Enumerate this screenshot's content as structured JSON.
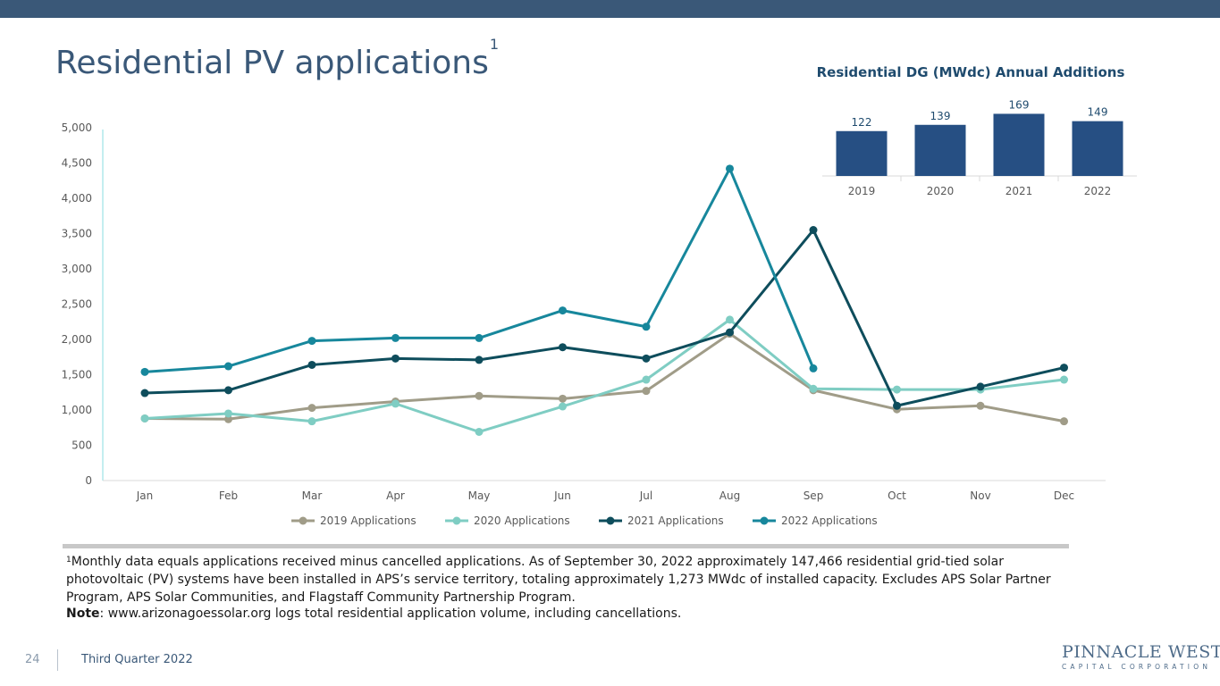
{
  "header": {
    "title": "Residential PV applications",
    "title_sup": "1"
  },
  "colors": {
    "topbar": "#3a5878",
    "title": "#3a5878",
    "series_2019": "#a09c88",
    "series_2020": "#7fcdc3",
    "series_2021": "#0e4d5c",
    "series_2022": "#17879c",
    "bars": "#264f83"
  },
  "chart_data": [
    {
      "type": "line",
      "title": "",
      "xlabel": "",
      "ylabel": "",
      "categories": [
        "Jan",
        "Feb",
        "Mar",
        "Apr",
        "May",
        "Jun",
        "Jul",
        "Aug",
        "Sep",
        "Oct",
        "Nov",
        "Dec"
      ],
      "ylim": [
        0,
        5000
      ],
      "yticks": [
        "0",
        "500",
        "1,000",
        "1,500",
        "2,000",
        "2,500",
        "3,000",
        "3,500",
        "4,000",
        "4,500",
        "5,000"
      ],
      "grid": false,
      "legend_position": "bottom",
      "series": [
        {
          "name": "2019 Applications",
          "values": [
            880,
            870,
            1030,
            1120,
            1200,
            1160,
            1270,
            2080,
            1280,
            1010,
            1060,
            840
          ]
        },
        {
          "name": "2020 Applications",
          "values": [
            880,
            950,
            840,
            1090,
            690,
            1050,
            1430,
            2280,
            1300,
            1290,
            1290,
            1430
          ]
        },
        {
          "name": "2021 Applications",
          "values": [
            1240,
            1280,
            1640,
            1730,
            1710,
            1890,
            1730,
            2100,
            3550,
            1060,
            1330,
            1600
          ]
        },
        {
          "name": "2022 Applications",
          "values": [
            1540,
            1620,
            1980,
            2020,
            2020,
            2410,
            2180,
            4420,
            1590,
            null,
            null,
            null
          ]
        }
      ]
    },
    {
      "type": "bar",
      "title": "Residential DG (MWdc) Annual Additions",
      "xlabel": "",
      "ylabel": "",
      "categories": [
        "2019",
        "2020",
        "2021",
        "2022"
      ],
      "values": [
        122,
        139,
        169,
        149
      ],
      "value_labels": [
        "122",
        "139",
        "169",
        "149"
      ],
      "ylim": [
        0,
        170
      ],
      "grid": false
    }
  ],
  "footnote": {
    "sup": "1",
    "text": "Monthly data equals applications received minus cancelled applications. As of September 30, 2022 approximately 147,466 residential grid-tied solar photovoltaic (PV) systems have been installed in APS’s service territory, totaling approximately 1,273 MWdc of installed capacity. Excludes APS Solar Partner Program, APS Solar Communities, and Flagstaff Community Partnership Program."
  },
  "note": {
    "label": "Note",
    "text": ":  www.arizonagoessolar.org logs total residential application volume, including cancellations."
  },
  "footer": {
    "page_number": "24",
    "label": "Third Quarter 2022",
    "logo_main": "PINNACLE WEST",
    "logo_sub": "CAPITAL CORPORATION"
  }
}
